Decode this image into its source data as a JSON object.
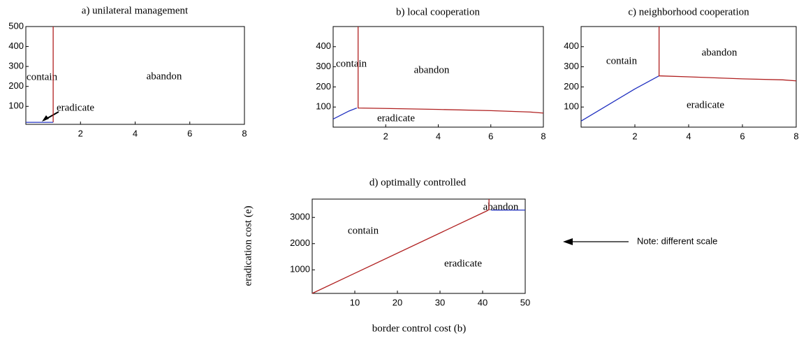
{
  "chart_data": [
    {
      "type": "line",
      "title": "a) unilateral management",
      "xlim": [
        0,
        8
      ],
      "ylim": [
        10,
        500
      ],
      "xticks": [
        2,
        4,
        6,
        8
      ],
      "yticks": [
        100,
        200,
        300,
        400,
        500
      ],
      "series": [
        {
          "color": "#b02020",
          "x": [
            1,
            1
          ],
          "values": [
            20,
            500
          ]
        },
        {
          "color": "#2030c0",
          "x": [
            0,
            1
          ],
          "values": [
            20,
            20
          ]
        }
      ],
      "annotations": [
        "contain",
        "abandon",
        "eradicate"
      ]
    },
    {
      "type": "line",
      "title": "b) local cooperation",
      "xlim": [
        0,
        8
      ],
      "ylim": [
        0,
        500
      ],
      "xticks": [
        2,
        4,
        6,
        8
      ],
      "yticks": [
        100,
        200,
        300,
        400
      ],
      "series": [
        {
          "color": "#2030c0",
          "x": [
            0,
            0.3,
            0.6,
            0.9
          ],
          "values": [
            40,
            60,
            80,
            95
          ]
        },
        {
          "color": "#b02020",
          "x": [
            0.95,
            0.95,
            2,
            4,
            6,
            7.5,
            8
          ],
          "values": [
            500,
            95,
            93,
            88,
            82,
            75,
            70
          ]
        }
      ],
      "annotations": [
        "contain",
        "abandon",
        "eradicate"
      ]
    },
    {
      "type": "line",
      "title": "c) neighborhood cooperation",
      "xlim": [
        0,
        8
      ],
      "ylim": [
        0,
        500
      ],
      "xticks": [
        2,
        4,
        6,
        8
      ],
      "yticks": [
        100,
        200,
        300,
        400
      ],
      "series": [
        {
          "color": "#2030c0",
          "x": [
            0,
            1,
            2,
            2.9
          ],
          "values": [
            30,
            110,
            190,
            255
          ]
        },
        {
          "color": "#b02020",
          "x": [
            2.9,
            2.9,
            4,
            6,
            7.5,
            8
          ],
          "values": [
            500,
            255,
            250,
            240,
            235,
            230
          ]
        }
      ],
      "annotations": [
        "contain",
        "abandon",
        "eradicate"
      ]
    },
    {
      "type": "line",
      "title": "d) optimally controlled",
      "x_label": "border control cost (b)",
      "y_label": "eradication cost (e)",
      "xlim": [
        0,
        50
      ],
      "ylim": [
        100,
        3700
      ],
      "xticks": [
        10,
        20,
        30,
        40,
        50
      ],
      "yticks": [
        1000,
        2000,
        3000
      ],
      "series": [
        {
          "color": "#b02020",
          "x": [
            0,
            41,
            41.5,
            41.5
          ],
          "values": [
            100,
            3250,
            3300,
            3700
          ]
        },
        {
          "color": "#2030c0",
          "x": [
            42,
            50
          ],
          "values": [
            3280,
            3280
          ]
        }
      ],
      "annotations": [
        "contain",
        "abandon",
        "eradicate"
      ]
    }
  ],
  "note": "Note: different scale"
}
